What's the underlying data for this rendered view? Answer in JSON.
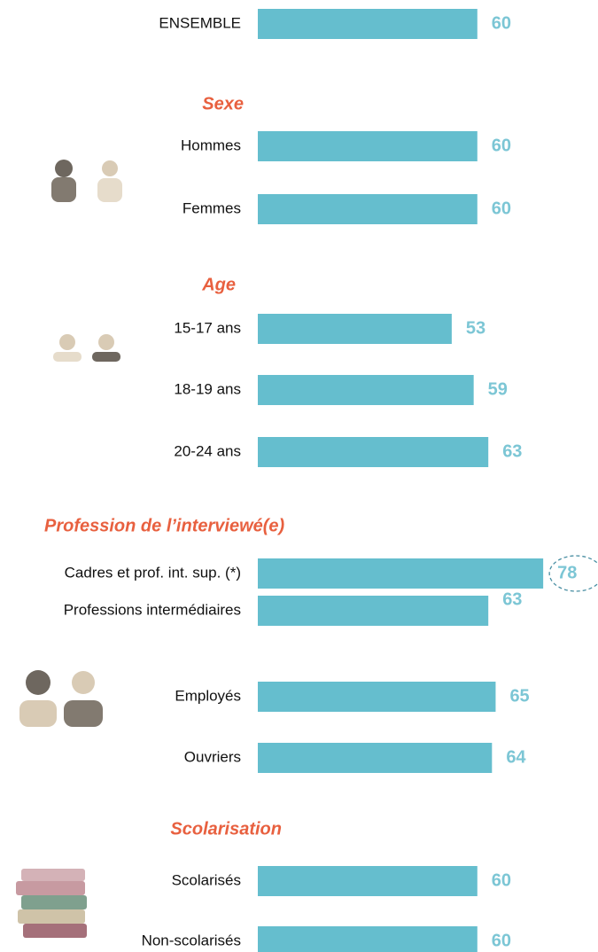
{
  "chart_data": {
    "type": "bar",
    "orientation": "horizontal",
    "color": "#65bece",
    "xlim": [
      0,
      100
    ],
    "groups": [
      {
        "categories": [
          "ENSEMBLE"
        ],
        "values": [
          60
        ]
      },
      {
        "title": "Sexe",
        "categories": [
          "Hommes",
          "Femmes"
        ],
        "values": [
          60,
          60
        ]
      },
      {
        "title": "Age",
        "categories": [
          "15-17 ans",
          "18-19 ans",
          "20-24 ans"
        ],
        "values": [
          53,
          59,
          63
        ]
      },
      {
        "title": "Profession de l’interviewé(e)",
        "categories": [
          "Cadres et prof. int. sup. (*)",
          "Professions intermédiaires",
          "Employés",
          "Ouvriers"
        ],
        "values": [
          78,
          63,
          65,
          64
        ],
        "circled": [
          true,
          false,
          false,
          false
        ]
      },
      {
        "title": "Scolarisation",
        "categories": [
          "Scolarisés",
          "Non-scolarisés"
        ],
        "values": [
          60,
          60
        ]
      }
    ]
  }
}
